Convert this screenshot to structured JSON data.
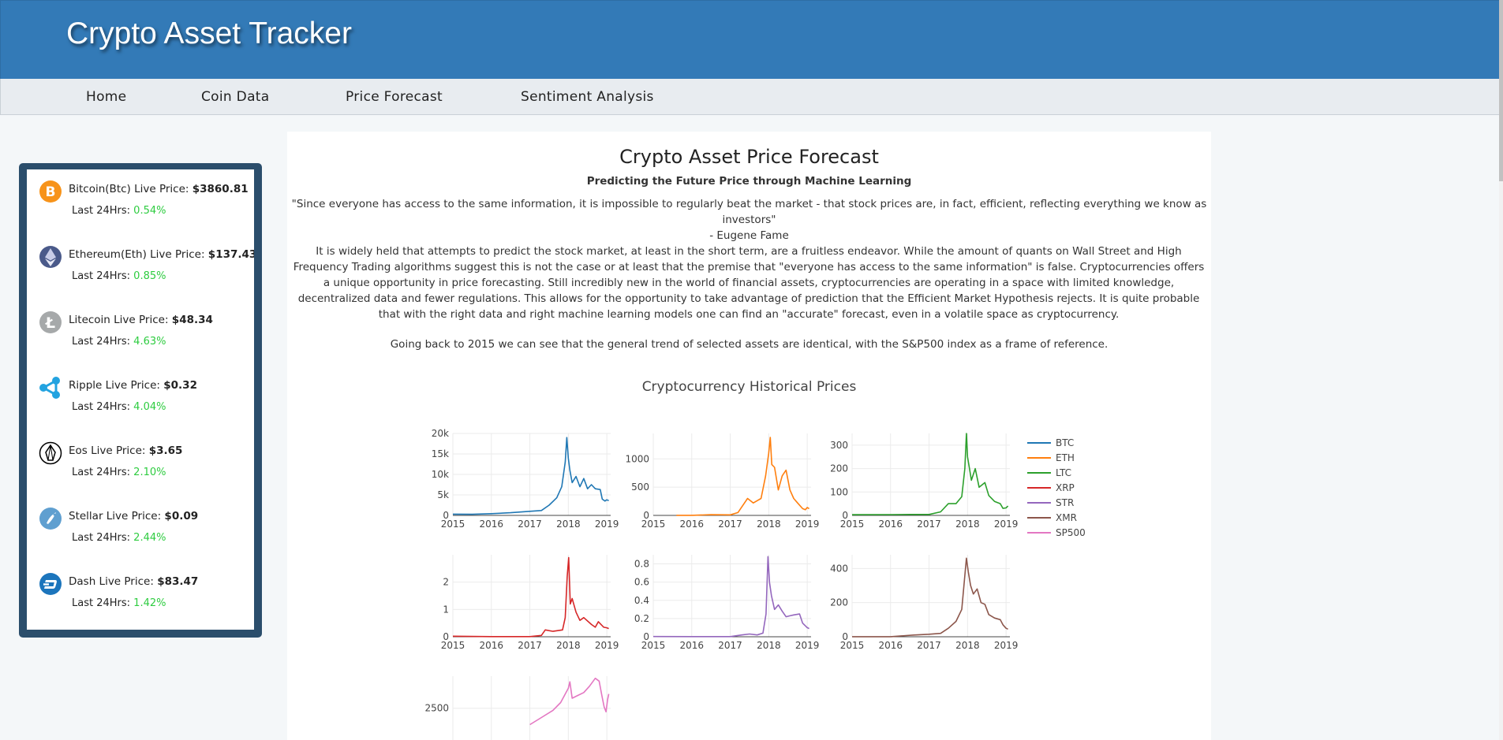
{
  "app": {
    "title": "Crypto Asset Tracker"
  },
  "nav": {
    "items": [
      "Home",
      "Coin Data",
      "Price Forecast",
      "Sentiment Analysis"
    ]
  },
  "sidebar": {
    "sub_label": "Last 24Hrs:",
    "coins": [
      {
        "name": "Bitcoin(Btc) Live Price:",
        "price": "$3860.81",
        "change": "0.54%",
        "icon": "bitcoin-icon",
        "color": "#f7931a"
      },
      {
        "name": "Ethereum(Eth) Live Price:",
        "price": "$137.43",
        "change": "0.85%",
        "icon": "ethereum-icon",
        "color": "#3c3c7d"
      },
      {
        "name": "Litecoin Live Price:",
        "price": "$48.34",
        "change": "4.63%",
        "icon": "litecoin-icon",
        "color": "#a6a9aa"
      },
      {
        "name": "Ripple Live Price:",
        "price": "$0.32",
        "change": "4.04%",
        "icon": "ripple-icon",
        "color": "#23a3e0"
      },
      {
        "name": "Eos Live Price:",
        "price": "$3.65",
        "change": "2.10%",
        "icon": "eos-icon",
        "color": "#000000"
      },
      {
        "name": "Stellar Live Price:",
        "price": "$0.09",
        "change": "2.44%",
        "icon": "stellar-icon",
        "color": "#5f9fd0"
      },
      {
        "name": "Dash Live Price:",
        "price": "$83.47",
        "change": "1.42%",
        "icon": "dash-icon",
        "color": "#1c75bc"
      }
    ]
  },
  "main": {
    "title": "Crypto Asset Price Forecast",
    "subtitle": "Predicting the Future Price through Machine Learning",
    "quote": "\"Since everyone has access to the same information, it is impossible to regularly beat the market - that stock prices are, in fact, efficient, reflecting everything we know as investors\"",
    "quote_author": "- Eugene Fame",
    "paragraph": "It is widely held that attempts to predict the stock market, at least in the short term, are a fruitless endeavor. While the amount of quants on Wall Street and High Frequency Trading algorithms suggest this is not the case or at least that the premise that \"everyone has access to the same information\" is false. Cryptocurrencies offers a unique opportunity in price forecasting. Still incredibly new in the world of financial assets, cryptocurrencies are operating in a space with limited knowledge, decentralized data and fewer regulations. This allows for the opportunity to take advantage of prediction that the Efficient Market Hypothesis rejects. It is quite probable that with the right data and right machine learning models one can find an \"accurate\" forecast, even in a volatile space as cryptocurrency.",
    "paragraph2": "Going back to 2015 we can see that the general trend of selected assets are identical, with the S&P500 index as a frame of reference."
  },
  "chart_data": {
    "type": "line",
    "title": "Cryptocurrency Historical Prices",
    "legend_position": "right",
    "x_ticks": [
      "2015",
      "2016",
      "2017",
      "2018",
      "2019"
    ],
    "grid": true,
    "series": [
      {
        "name": "BTC",
        "color": "#1f77b4",
        "y_ticks": [
          0,
          5000,
          10000,
          15000,
          20000
        ],
        "y_tick_labels": [
          "0",
          "5k",
          "10k",
          "15k",
          "20k"
        ],
        "ylim": [
          0,
          20000
        ],
        "points": [
          [
            2015.0,
            300
          ],
          [
            2015.5,
            260
          ],
          [
            2016.0,
            430
          ],
          [
            2016.5,
            650
          ],
          [
            2017.0,
            1000
          ],
          [
            2017.3,
            1200
          ],
          [
            2017.5,
            2500
          ],
          [
            2017.7,
            4300
          ],
          [
            2017.83,
            7000
          ],
          [
            2017.92,
            13000
          ],
          [
            2017.96,
            19000
          ],
          [
            2018.0,
            14000
          ],
          [
            2018.04,
            11000
          ],
          [
            2018.1,
            8000
          ],
          [
            2018.2,
            9500
          ],
          [
            2018.3,
            7000
          ],
          [
            2018.4,
            9000
          ],
          [
            2018.5,
            6500
          ],
          [
            2018.6,
            7500
          ],
          [
            2018.7,
            6500
          ],
          [
            2018.83,
            6300
          ],
          [
            2018.88,
            4000
          ],
          [
            2018.95,
            3500
          ],
          [
            2019.0,
            3800
          ],
          [
            2019.05,
            3600
          ]
        ]
      },
      {
        "name": "ETH",
        "color": "#ff7f0e",
        "y_ticks": [
          0,
          500,
          1000
        ],
        "y_tick_labels": [
          "0",
          "500",
          "1000"
        ],
        "ylim": [
          0,
          1450
        ],
        "points": [
          [
            2015.6,
            1
          ],
          [
            2016.0,
            1
          ],
          [
            2016.5,
            12
          ],
          [
            2017.0,
            10
          ],
          [
            2017.2,
            50
          ],
          [
            2017.45,
            300
          ],
          [
            2017.6,
            220
          ],
          [
            2017.8,
            300
          ],
          [
            2017.92,
            700
          ],
          [
            2018.0,
            1100
          ],
          [
            2018.04,
            1380
          ],
          [
            2018.08,
            900
          ],
          [
            2018.15,
            850
          ],
          [
            2018.25,
            450
          ],
          [
            2018.35,
            700
          ],
          [
            2018.45,
            800
          ],
          [
            2018.55,
            450
          ],
          [
            2018.65,
            300
          ],
          [
            2018.75,
            220
          ],
          [
            2018.88,
            120
          ],
          [
            2018.95,
            100
          ],
          [
            2019.0,
            140
          ],
          [
            2019.05,
            120
          ]
        ]
      },
      {
        "name": "LTC",
        "color": "#2ca02c",
        "y_ticks": [
          0,
          100,
          200,
          300
        ],
        "y_tick_labels": [
          "0",
          "100",
          "200",
          "300"
        ],
        "ylim": [
          0,
          350
        ],
        "points": [
          [
            2015.0,
            3
          ],
          [
            2016.0,
            3.5
          ],
          [
            2016.5,
            4
          ],
          [
            2017.0,
            4
          ],
          [
            2017.3,
            15
          ],
          [
            2017.5,
            50
          ],
          [
            2017.7,
            50
          ],
          [
            2017.85,
            80
          ],
          [
            2017.93,
            200
          ],
          [
            2017.97,
            350
          ],
          [
            2018.0,
            250
          ],
          [
            2018.05,
            200
          ],
          [
            2018.1,
            150
          ],
          [
            2018.2,
            200
          ],
          [
            2018.3,
            120
          ],
          [
            2018.45,
            140
          ],
          [
            2018.55,
            85
          ],
          [
            2018.7,
            60
          ],
          [
            2018.85,
            50
          ],
          [
            2018.92,
            30
          ],
          [
            2019.0,
            32
          ],
          [
            2019.05,
            40
          ]
        ]
      },
      {
        "name": "XRP",
        "color": "#d62728",
        "y_ticks": [
          0,
          1,
          2
        ],
        "y_tick_labels": [
          "0",
          "1",
          "2"
        ],
        "ylim": [
          0,
          3
        ],
        "points": [
          [
            2015.0,
            0.02
          ],
          [
            2016.0,
            0.006
          ],
          [
            2017.0,
            0.006
          ],
          [
            2017.3,
            0.05
          ],
          [
            2017.4,
            0.25
          ],
          [
            2017.6,
            0.2
          ],
          [
            2017.85,
            0.25
          ],
          [
            2017.92,
            0.7
          ],
          [
            2017.97,
            2.2
          ],
          [
            2018.01,
            2.9
          ],
          [
            2018.05,
            1.2
          ],
          [
            2018.1,
            1.4
          ],
          [
            2018.2,
            0.9
          ],
          [
            2018.3,
            0.6
          ],
          [
            2018.4,
            0.7
          ],
          [
            2018.6,
            0.45
          ],
          [
            2018.7,
            0.35
          ],
          [
            2018.78,
            0.55
          ],
          [
            2018.85,
            0.45
          ],
          [
            2018.92,
            0.35
          ],
          [
            2019.0,
            0.33
          ],
          [
            2019.05,
            0.3
          ]
        ]
      },
      {
        "name": "STR",
        "color": "#9467bd",
        "y_ticks": [
          0,
          0.2,
          0.4,
          0.6,
          0.8
        ],
        "y_tick_labels": [
          "0",
          "0.2",
          "0.4",
          "0.6",
          "0.8"
        ],
        "ylim": [
          0,
          0.9
        ],
        "points": [
          [
            2015.0,
            0.003
          ],
          [
            2016.0,
            0.002
          ],
          [
            2017.0,
            0.002
          ],
          [
            2017.3,
            0.02
          ],
          [
            2017.5,
            0.03
          ],
          [
            2017.7,
            0.02
          ],
          [
            2017.85,
            0.04
          ],
          [
            2017.93,
            0.25
          ],
          [
            2017.98,
            0.88
          ],
          [
            2018.02,
            0.6
          ],
          [
            2018.07,
            0.45
          ],
          [
            2018.15,
            0.3
          ],
          [
            2018.25,
            0.35
          ],
          [
            2018.35,
            0.28
          ],
          [
            2018.45,
            0.22
          ],
          [
            2018.55,
            0.23
          ],
          [
            2018.65,
            0.24
          ],
          [
            2018.8,
            0.25
          ],
          [
            2018.88,
            0.15
          ],
          [
            2018.95,
            0.12
          ],
          [
            2019.0,
            0.1
          ],
          [
            2019.05,
            0.09
          ]
        ]
      },
      {
        "name": "XMR",
        "color": "#8c564b",
        "y_ticks": [
          0,
          200,
          400
        ],
        "y_tick_labels": [
          "0",
          "200",
          "400"
        ],
        "ylim": [
          0,
          480
        ],
        "points": [
          [
            2015.0,
            0.5
          ],
          [
            2016.0,
            0.5
          ],
          [
            2016.6,
            10
          ],
          [
            2017.0,
            15
          ],
          [
            2017.3,
            20
          ],
          [
            2017.5,
            50
          ],
          [
            2017.7,
            90
          ],
          [
            2017.85,
            160
          ],
          [
            2017.97,
            460
          ],
          [
            2018.02,
            380
          ],
          [
            2018.08,
            300
          ],
          [
            2018.15,
            250
          ],
          [
            2018.25,
            280
          ],
          [
            2018.35,
            200
          ],
          [
            2018.45,
            190
          ],
          [
            2018.55,
            130
          ],
          [
            2018.7,
            110
          ],
          [
            2018.85,
            100
          ],
          [
            2018.92,
            70
          ],
          [
            2019.0,
            50
          ],
          [
            2019.05,
            45
          ]
        ]
      },
      {
        "name": "SP500",
        "color": "#e377c2",
        "y_ticks": [
          2500
        ],
        "y_tick_labels": [
          "2500"
        ],
        "ylim": [
          1800,
          2950
        ],
        "points": [
          [
            2017.0,
            2270
          ],
          [
            2017.3,
            2370
          ],
          [
            2017.6,
            2470
          ],
          [
            2017.8,
            2580
          ],
          [
            2018.0,
            2780
          ],
          [
            2018.04,
            2870
          ],
          [
            2018.1,
            2640
          ],
          [
            2018.25,
            2680
          ],
          [
            2018.4,
            2720
          ],
          [
            2018.55,
            2810
          ],
          [
            2018.7,
            2920
          ],
          [
            2018.8,
            2880
          ],
          [
            2018.87,
            2680
          ],
          [
            2018.93,
            2520
          ],
          [
            2018.98,
            2450
          ],
          [
            2019.02,
            2620
          ],
          [
            2019.05,
            2700
          ]
        ]
      }
    ]
  }
}
